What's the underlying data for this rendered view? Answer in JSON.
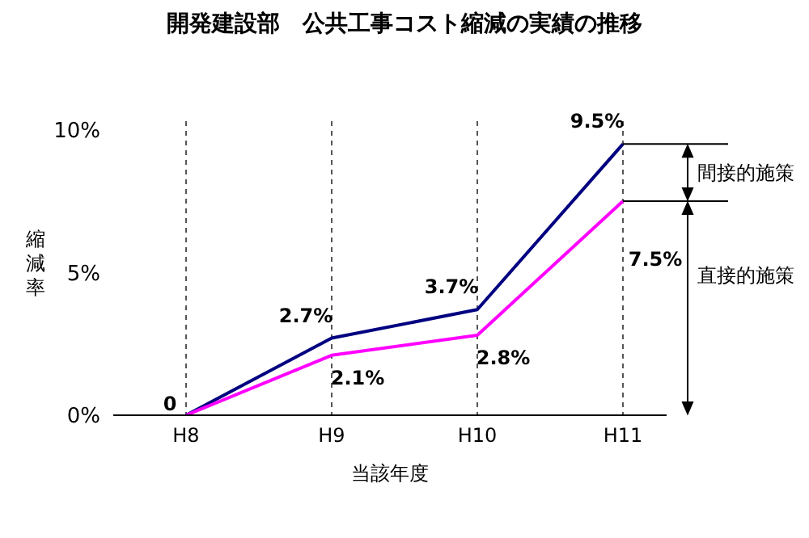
{
  "chart_data": {
    "type": "line",
    "title": "開発建設部　公共工事コスト縮減の実績の推移",
    "xlabel": "当該年度",
    "ylabel": "縮減率",
    "categories": [
      "H8",
      "H9",
      "H10",
      "H11"
    ],
    "series": [
      {
        "color": "#000080",
        "values": [
          0,
          2.7,
          3.7,
          9.5
        ],
        "value_labels": [
          null,
          "2.7%",
          "3.7%",
          "9.5%"
        ]
      },
      {
        "color": "#ff00ff",
        "values": [
          0,
          2.1,
          2.8,
          7.5
        ],
        "value_labels": [
          "0",
          "2.1%",
          "2.8%",
          "7.5%"
        ]
      }
    ],
    "ylim": [
      0,
      10.3
    ],
    "yticks": [
      {
        "value": 0,
        "label": "0%"
      },
      {
        "value": 5,
        "label": "5%"
      },
      {
        "value": 10,
        "label": "10%"
      }
    ],
    "grid": "x",
    "marker": "none",
    "line_style": "solid",
    "legend": false,
    "annotations": [
      {
        "text": "間接的施策",
        "x": "H11",
        "y": 9.5
      },
      "直接的施策"
    ]
  }
}
